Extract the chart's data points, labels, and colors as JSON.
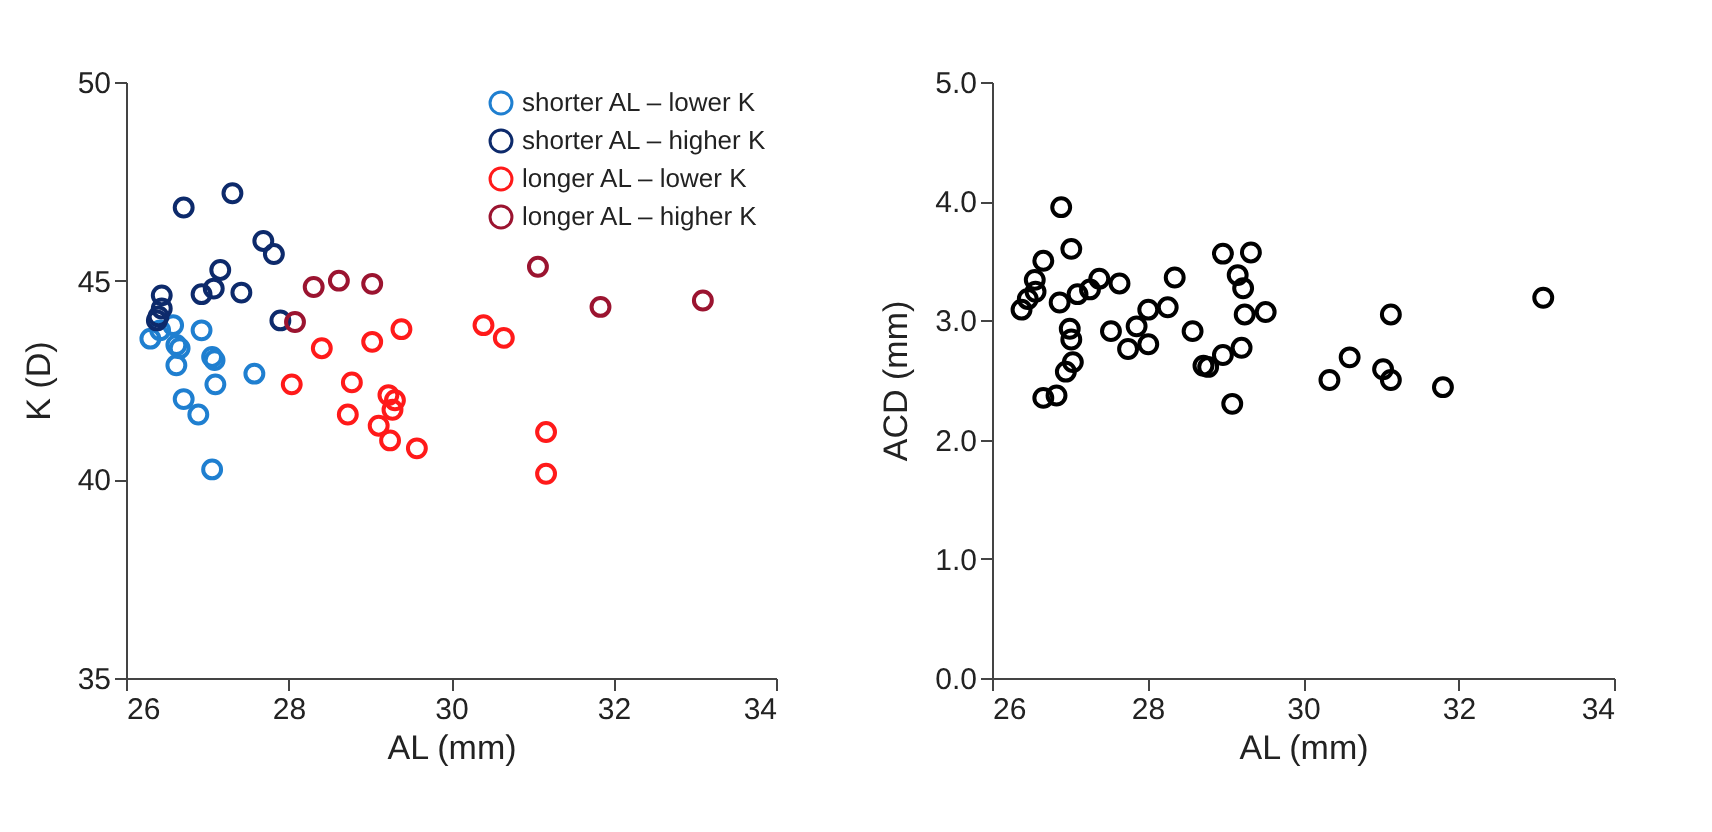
{
  "chart_data": [
    {
      "type": "scatter",
      "xlabel": "AL (mm)",
      "ylabel": "K (D)",
      "xlim": [
        26,
        34
      ],
      "xticks": [
        26,
        28,
        30,
        32,
        34
      ],
      "ylim": [
        35,
        50
      ],
      "yticks": [
        35,
        40,
        45,
        50
      ],
      "grid": false,
      "legend": "top right",
      "marker": "circle",
      "series": [
        {
          "name": "shorter AL – lower K",
          "color": "#1f7fd0",
          "x": [
            26.3,
            26.58,
            26.62,
            26.93,
            27.06,
            27.09,
            26.62,
            27.58,
            27.1,
            26.71,
            26.89,
            27.06,
            26.42,
            26.66
          ],
          "values": [
            43.54,
            43.88,
            43.38,
            43.75,
            43.08,
            43.0,
            42.87,
            42.66,
            42.39,
            42.02,
            41.63,
            40.25,
            43.75,
            43.3
          ]
        },
        {
          "name": "shorter AL – higher K",
          "color": "#0d2a6b",
          "x": [
            26.71,
            27.31,
            27.69,
            27.82,
            27.16,
            27.08,
            26.93,
            27.42,
            26.44,
            26.44,
            26.4,
            26.38,
            27.9
          ],
          "values": [
            46.84,
            47.2,
            46.0,
            45.67,
            45.27,
            44.8,
            44.66,
            44.7,
            44.63,
            44.3,
            44.1,
            44.0,
            44.0
          ]
        },
        {
          "name": "longer AL – lower K",
          "color": "#ff1a1a",
          "x": [
            28.41,
            28.04,
            29.03,
            29.39,
            28.78,
            28.73,
            29.23,
            29.31,
            29.28,
            29.11,
            29.25,
            29.58,
            30.4,
            30.65,
            31.17,
            31.17
          ],
          "values": [
            43.3,
            42.39,
            43.46,
            43.78,
            42.44,
            41.63,
            42.12,
            41.99,
            41.75,
            41.35,
            40.98,
            40.78,
            43.88,
            43.56,
            41.19,
            40.14
          ]
        },
        {
          "name": "longer AL – higher K",
          "color": "#9b1430",
          "x": [
            28.08,
            28.31,
            28.62,
            29.03,
            31.07,
            31.84,
            33.1
          ],
          "values": [
            43.96,
            44.84,
            45.0,
            44.92,
            45.35,
            44.34,
            44.5
          ]
        }
      ]
    },
    {
      "type": "scatter",
      "xlabel": "AL (mm)",
      "ylabel": "ACD (mm)",
      "xlim": [
        26,
        34
      ],
      "xticks": [
        26,
        28,
        30,
        32,
        34
      ],
      "ylim": [
        0,
        5
      ],
      "yticks": [
        {
          "value": 0,
          "label": "0.0"
        },
        {
          "value": 1,
          "label": "1.0"
        },
        {
          "value": 2,
          "label": "2.0"
        },
        {
          "value": 3,
          "label": "3.0"
        },
        {
          "value": 4,
          "label": "4.0"
        },
        {
          "value": 5,
          "label": "5.0"
        }
      ],
      "grid": false,
      "marker": "circle",
      "series": [
        {
          "color": "#000000",
          "x": [
            26.89,
            27.02,
            26.66,
            26.55,
            26.56,
            26.46,
            26.38,
            26.87,
            27.1,
            27.26,
            27.38,
            27.64,
            28.35,
            28.26,
            28.01,
            27.86,
            27.53,
            27.75,
            28.01,
            27.0,
            27.02,
            27.04,
            26.95,
            26.66,
            26.83,
            28.58,
            28.72,
            28.78,
            28.97,
            28.97,
            29.33,
            29.09,
            29.16,
            29.23,
            29.25,
            29.52,
            29.21,
            31.13,
            33.09,
            30.6,
            30.34,
            31.03,
            31.13,
            31.8
          ],
          "values": [
            3.95,
            3.6,
            3.5,
            3.34,
            3.24,
            3.18,
            3.09,
            3.15,
            3.22,
            3.26,
            3.35,
            3.31,
            3.36,
            3.11,
            3.09,
            2.95,
            2.91,
            2.76,
            2.8,
            2.93,
            2.84,
            2.65,
            2.57,
            2.35,
            2.37,
            2.91,
            2.62,
            2.61,
            2.71,
            3.56,
            3.57,
            2.3,
            3.38,
            3.27,
            3.05,
            3.07,
            2.77,
            3.05,
            3.19,
            2.69,
            2.5,
            2.59,
            2.5,
            2.44
          ]
        }
      ]
    }
  ]
}
